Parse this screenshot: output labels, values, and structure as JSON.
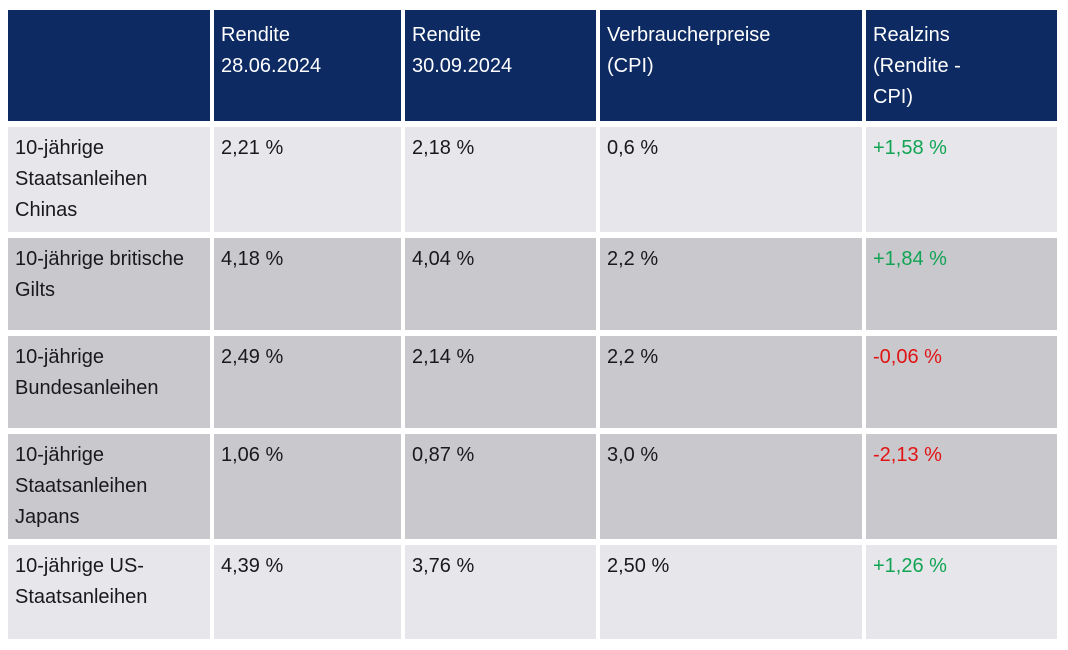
{
  "colors": {
    "header_bg": "#0d2a63",
    "header_text": "#ffffff",
    "row_light": "#e7e6ea",
    "row_dark": "#c9c8cd",
    "body_text": "#19191b",
    "positive": "#12a454",
    "negative": "#e11414",
    "page_bg": "#ffffff"
  },
  "chart_data": {
    "type": "table",
    "columns": [
      "",
      "Rendite 28.06.2024",
      "Rendite 30.09.2024",
      "Verbraucherpreise (CPI)",
      "Realzins (Rendite - CPI)"
    ],
    "column_lines": [
      [
        ""
      ],
      [
        "Rendite",
        "28.06.2024"
      ],
      [
        "Rendite",
        "30.09.2024"
      ],
      [
        "Verbraucherpreise",
        "(CPI)"
      ],
      [
        "Realzins",
        "(Rendite -",
        "CPI)"
      ]
    ],
    "rows": [
      [
        "10-jährige Staatsanleihen Chinas",
        "2,21 %",
        "2,18 %",
        "0,6 %",
        "+1,58 %"
      ],
      [
        "10-jährige britische Gilts",
        "4,18 %",
        "4,04 %",
        "2,2 %",
        "+1,84 %"
      ],
      [
        "10-jährige Bundesanleihen",
        "2,49 %",
        "2,14 %",
        "2,2 %",
        "-0,06 %"
      ],
      [
        "10-jährige Staatsanleihen Japans",
        "1,06 %",
        "0,87 %",
        "3,0 %",
        "-2,13 %"
      ],
      [
        "10-jährige US-Staatsanleihen",
        "4,39 %",
        "3,76 %",
        "2,50 %",
        "+1,26 %"
      ]
    ],
    "realzins_signs": [
      "positive",
      "positive",
      "negative",
      "negative",
      "positive"
    ],
    "row_shades": [
      "light",
      "dark",
      "dark",
      "dark",
      "light"
    ],
    "numeric": {
      "labels": [
        "10-jährige Staatsanleihen Chinas",
        "10-jährige britische Gilts",
        "10-jährige Bundesanleihen",
        "10-jährige Staatsanleihen Japans",
        "10-jährige US-Staatsanleihen"
      ],
      "rendite_28_06_2024_pct": [
        2.21,
        4.18,
        2.49,
        1.06,
        4.39
      ],
      "rendite_30_09_2024_pct": [
        2.18,
        4.04,
        2.14,
        0.87,
        3.76
      ],
      "verbraucherpreise_cpi_pct": [
        0.6,
        2.2,
        2.2,
        3.0,
        2.5
      ],
      "realzins_pct": [
        1.58,
        1.84,
        -0.06,
        -2.13,
        1.26
      ]
    }
  }
}
